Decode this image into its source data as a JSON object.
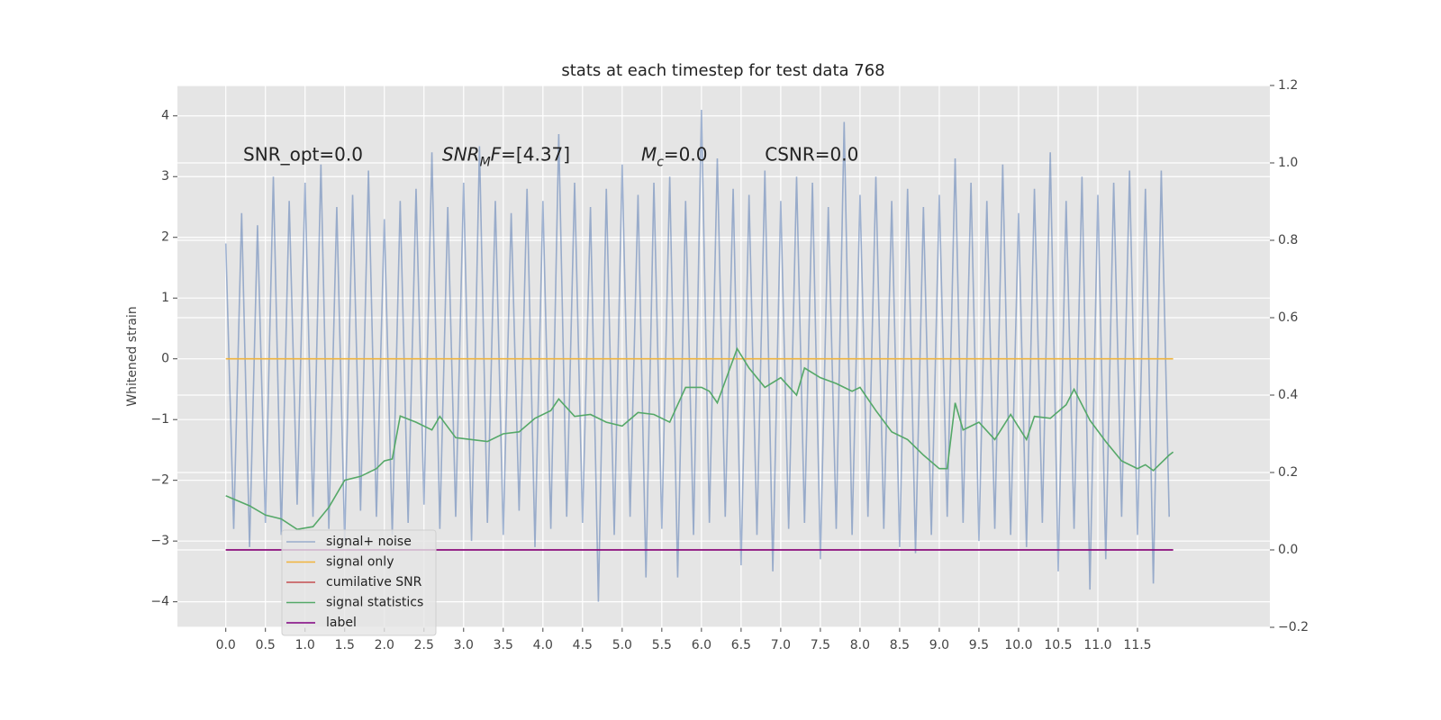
{
  "chart_data": {
    "type": "line",
    "title": "stats at each timestep for test data 768",
    "ylabel": "Whitened strain",
    "xlim": [
      -0.61,
      13.17
    ],
    "ylim": [
      -4.42,
      4.5
    ],
    "y2lim": [
      -0.2,
      1.2
    ],
    "xticks": [
      {
        "value": 0,
        "label": "0.0"
      },
      0.5,
      {
        "value": 1,
        "label": "1.0"
      },
      1.5,
      {
        "value": 2,
        "label": "2.0"
      },
      2.5,
      {
        "value": 3,
        "label": "3.0"
      },
      3.5,
      {
        "value": 4,
        "label": "4.0"
      },
      4.5,
      {
        "value": 5,
        "label": "5.0"
      },
      5.5,
      {
        "value": 6,
        "label": "6.0"
      },
      6.5,
      {
        "value": 7,
        "label": "7.0"
      },
      7.5,
      {
        "value": 8,
        "label": "8.0"
      },
      8.5,
      {
        "value": 9,
        "label": "9.0"
      },
      9.5,
      {
        "value": 10,
        "label": "10.0"
      },
      10.5,
      {
        "value": 11,
        "label": "11.0"
      },
      11.5
    ],
    "yticks": [
      {
        "value": -4,
        "label": "−4"
      },
      {
        "value": -3,
        "label": "−3"
      },
      {
        "value": -2,
        "label": "−2"
      },
      {
        "value": -1,
        "label": "−1"
      },
      0,
      1,
      2,
      3,
      4
    ],
    "y2ticks": [
      {
        "value": -0.2,
        "label": "−0.2"
      },
      {
        "value": 0,
        "label": "0.0"
      },
      0.2,
      0.4,
      0.6,
      0.8,
      {
        "value": 1,
        "label": "1.0"
      },
      1.2
    ],
    "grid": true,
    "legend": "lower left",
    "annotations": [
      {
        "x": 0.22,
        "y": 3.35,
        "italic": false,
        "parts": [
          {
            "text": "SNR_opt=0.0"
          }
        ]
      },
      {
        "x": 2.73,
        "y": 3.35,
        "italic": true,
        "parts": [
          {
            "text": "SNR"
          },
          {
            "text": "M",
            "sub": true
          },
          {
            "text": "F"
          },
          {
            "text": "=[4.37]",
            "upright": true
          }
        ]
      },
      {
        "x": 5.24,
        "y": 3.35,
        "italic": true,
        "parts": [
          {
            "text": "M"
          },
          {
            "text": "c",
            "sub": true
          },
          {
            "text": "=0.0",
            "upright": true
          }
        ]
      },
      {
        "x": 6.8,
        "y": 3.35,
        "italic": false,
        "parts": [
          {
            "text": "CSNR=0.0"
          }
        ]
      }
    ],
    "series": [
      {
        "name": "signal+ noise",
        "color": "#4c72b0",
        "alpha": 0.5,
        "x": [
          0,
          0.1,
          0.2,
          0.3,
          0.4,
          0.5,
          0.6,
          0.7,
          0.8,
          0.9,
          1,
          1.1,
          1.2,
          1.3,
          1.4,
          1.5,
          1.6,
          1.7,
          1.8,
          1.9,
          2,
          2.1,
          2.2,
          2.3,
          2.4,
          2.5,
          2.6,
          2.7,
          2.8,
          2.9,
          3,
          3.1,
          3.2,
          3.3,
          3.4,
          3.5,
          3.6,
          3.7,
          3.8,
          3.9,
          4,
          4.1,
          4.2,
          4.3,
          4.4,
          4.5,
          4.6,
          4.7,
          4.8,
          4.9,
          5,
          5.1,
          5.2,
          5.3,
          5.4,
          5.5,
          5.6,
          5.7,
          5.8,
          5.9,
          6,
          6.1,
          6.2,
          6.3,
          6.4,
          6.5,
          6.6,
          6.7,
          6.8,
          6.9,
          7,
          7.1,
          7.2,
          7.3,
          7.4,
          7.5,
          7.6,
          7.7,
          7.8,
          7.9,
          8,
          8.1,
          8.2,
          8.3,
          8.4,
          8.5,
          8.6,
          8.7,
          8.8,
          8.9,
          9,
          9.1,
          9.2,
          9.3,
          9.4,
          9.5,
          9.6,
          9.7,
          9.8,
          9.9,
          10,
          10.1,
          10.2,
          10.3,
          10.4,
          10.5,
          10.6,
          10.7,
          10.8,
          10.9,
          11,
          11.1,
          11.2,
          11.3,
          11.4,
          11.5,
          11.6,
          11.7,
          11.8,
          11.9
        ],
        "values": [
          1.9,
          -2.8,
          2.4,
          -3.1,
          2.2,
          -2.7,
          3.0,
          -2.9,
          2.6,
          -2.4,
          2.9,
          -2.6,
          3.2,
          -2.8,
          2.5,
          -3.0,
          2.7,
          -2.5,
          3.1,
          -2.6,
          2.3,
          -2.9,
          2.6,
          -2.7,
          2.8,
          -2.4,
          3.4,
          -2.8,
          2.5,
          -2.6,
          2.9,
          -3.0,
          3.5,
          -2.7,
          2.6,
          -2.9,
          2.4,
          -2.5,
          2.8,
          -3.1,
          2.6,
          -2.8,
          3.7,
          -2.6,
          2.9,
          -2.7,
          2.5,
          -4.0,
          2.8,
          -2.9,
          3.2,
          -2.6,
          2.7,
          -3.6,
          2.9,
          -2.8,
          3.0,
          -3.6,
          2.6,
          -2.9,
          4.1,
          -2.7,
          3.3,
          -2.6,
          2.8,
          -3.4,
          2.7,
          -2.9,
          3.1,
          -3.5,
          2.6,
          -2.8,
          3.0,
          -2.7,
          2.9,
          -3.3,
          2.5,
          -2.8,
          3.9,
          -2.9,
          2.7,
          -2.6,
          3.0,
          -2.8,
          2.6,
          -3.1,
          2.8,
          -3.2,
          2.5,
          -2.9,
          2.7,
          -2.6,
          3.3,
          -2.7,
          2.9,
          -3.0,
          2.6,
          -2.8,
          3.2,
          -2.9,
          2.4,
          -3.1,
          2.8,
          -2.7,
          3.4,
          -3.5,
          2.6,
          -2.8,
          3.0,
          -3.8,
          2.7,
          -3.3,
          2.9,
          -2.6,
          3.1,
          -2.9,
          2.8,
          -3.7,
          3.1,
          -2.6
        ]
      },
      {
        "name": "signal only",
        "color": "#f0b43c",
        "x": [
          0,
          11.95
        ],
        "values": [
          0,
          0
        ]
      },
      {
        "name": "cumilative SNR",
        "color": "#c44e52",
        "axis": "y2",
        "x": [
          0,
          11.95
        ],
        "values": [
          0,
          0
        ]
      },
      {
        "name": "signal statistics",
        "color": "#55a868",
        "axis": "y2",
        "x": [
          0,
          0.3,
          0.5,
          0.7,
          0.9,
          1.1,
          1.3,
          1.5,
          1.7,
          1.9,
          2.0,
          2.1,
          2.2,
          2.4,
          2.6,
          2.7,
          2.9,
          3.1,
          3.3,
          3.5,
          3.7,
          3.9,
          4.1,
          4.2,
          4.4,
          4.6,
          4.8,
          5.0,
          5.2,
          5.4,
          5.6,
          5.8,
          6.0,
          6.1,
          6.2,
          6.45,
          6.6,
          6.8,
          7.0,
          7.2,
          7.3,
          7.5,
          7.7,
          7.9,
          8.0,
          8.2,
          8.4,
          8.6,
          8.8,
          9.0,
          9.1,
          9.2,
          9.3,
          9.5,
          9.7,
          9.9,
          10.1,
          10.2,
          10.4,
          10.6,
          10.7,
          10.9,
          11.1,
          11.3,
          11.5,
          11.6,
          11.7,
          11.9,
          11.95
        ],
        "values": [
          0.14,
          0.114,
          0.09,
          0.08,
          0.053,
          0.06,
          0.11,
          0.18,
          0.19,
          0.21,
          0.23,
          0.235,
          0.346,
          0.33,
          0.31,
          0.345,
          0.29,
          0.285,
          0.28,
          0.3,
          0.305,
          0.34,
          0.36,
          0.39,
          0.345,
          0.35,
          0.33,
          0.32,
          0.355,
          0.35,
          0.33,
          0.42,
          0.42,
          0.41,
          0.38,
          0.52,
          0.47,
          0.42,
          0.445,
          0.4,
          0.47,
          0.445,
          0.43,
          0.41,
          0.42,
          0.36,
          0.305,
          0.285,
          0.245,
          0.21,
          0.21,
          0.38,
          0.31,
          0.33,
          0.285,
          0.35,
          0.285,
          0.345,
          0.34,
          0.375,
          0.415,
          0.335,
          0.28,
          0.23,
          0.21,
          0.22,
          0.205,
          0.245,
          0.253
        ]
      },
      {
        "name": "label",
        "color": "#800080",
        "axis": "y2",
        "x": [
          0,
          11.95
        ],
        "values": [
          0,
          0
        ]
      }
    ]
  }
}
